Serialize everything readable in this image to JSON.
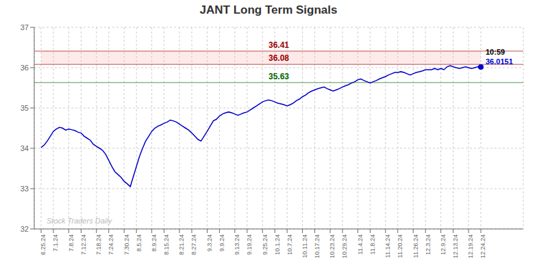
{
  "chart_data": {
    "type": "line",
    "title": "JANT Long Term Signals",
    "categories": [
      "6.25.24",
      null,
      null,
      null,
      "7.1.24",
      null,
      null,
      null,
      null,
      "7.8.24",
      null,
      null,
      null,
      "7.12.24",
      null,
      null,
      null,
      null,
      "7.18.24",
      null,
      null,
      null,
      "7.24.24",
      null,
      null,
      null,
      null,
      "7.30.24",
      null,
      null,
      null,
      "8.5.24",
      null,
      null,
      null,
      null,
      "8.9.24",
      null,
      null,
      null,
      "8.15.24",
      null,
      null,
      null,
      null,
      "8.21.24",
      null,
      null,
      null,
      "8.27.24",
      null,
      null,
      null,
      null,
      "9.3.24",
      null,
      null,
      null,
      "9.9.24",
      null,
      null,
      null,
      null,
      "9.13.24",
      null,
      null,
      null,
      "9.19.24",
      null,
      null,
      null,
      null,
      "9.25.24",
      null,
      null,
      null,
      "10.1.24",
      null,
      null,
      null,
      "10.7.24",
      null,
      null,
      null,
      null,
      "10.11.24",
      null,
      null,
      null,
      "10.17.24",
      null,
      null,
      null,
      null,
      "10.23.24",
      null,
      null,
      null,
      "10.29.24",
      null,
      null,
      null,
      null,
      "11.4.24",
      null,
      null,
      null,
      "11.8.24",
      null,
      null,
      null,
      null,
      "11.14.24",
      null,
      null,
      null,
      "11.20.24",
      null,
      null,
      null,
      null,
      "11.26.24",
      null,
      null,
      null,
      "12.3.24",
      null,
      null,
      null,
      null,
      "12.9.24",
      null,
      null,
      null,
      "12.13.24",
      null,
      null,
      null,
      null,
      "12.19.24",
      null,
      null,
      null,
      "12.24.24"
    ],
    "values": [
      34.02,
      34.08,
      34.18,
      34.3,
      34.42,
      34.48,
      34.52,
      34.5,
      34.45,
      34.48,
      34.46,
      34.44,
      34.4,
      34.38,
      34.3,
      34.25,
      34.2,
      34.1,
      34.05,
      34.0,
      33.95,
      33.85,
      33.7,
      33.55,
      33.42,
      33.35,
      33.28,
      33.18,
      33.12,
      33.05,
      33.3,
      33.55,
      33.8,
      34.0,
      34.18,
      34.3,
      34.42,
      34.5,
      34.55,
      34.58,
      34.62,
      34.65,
      34.7,
      34.68,
      34.65,
      34.6,
      34.55,
      34.5,
      34.45,
      34.38,
      34.3,
      34.22,
      34.18,
      34.3,
      34.42,
      34.55,
      34.68,
      34.72,
      34.8,
      34.85,
      34.88,
      34.9,
      34.88,
      34.85,
      34.82,
      34.85,
      34.88,
      34.9,
      34.95,
      35.0,
      35.05,
      35.1,
      35.15,
      35.18,
      35.2,
      35.18,
      35.15,
      35.12,
      35.1,
      35.08,
      35.05,
      35.08,
      35.12,
      35.18,
      35.22,
      35.28,
      35.32,
      35.38,
      35.42,
      35.45,
      35.48,
      35.5,
      35.52,
      35.48,
      35.45,
      35.42,
      35.45,
      35.48,
      35.52,
      35.55,
      35.58,
      35.62,
      35.65,
      35.7,
      35.72,
      35.68,
      35.65,
      35.62,
      35.65,
      35.68,
      35.72,
      35.75,
      35.78,
      35.82,
      35.85,
      35.88,
      35.88,
      35.9,
      35.88,
      35.85,
      35.82,
      35.85,
      35.88,
      35.9,
      35.92,
      35.95,
      35.95,
      35.95,
      35.98,
      35.95,
      35.98,
      35.95,
      36.02,
      36.05,
      36.02,
      36.0,
      35.98,
      36.0,
      36.02,
      36.0,
      35.98,
      36.0,
      36.02,
      36.0151
    ],
    "color": "#0000cc",
    "ylim": [
      32,
      37
    ],
    "yticks": [
      32,
      33,
      34,
      35,
      36,
      37
    ],
    "grid": true,
    "hlines": [
      {
        "value": 36.41,
        "label": "36.41",
        "color": "#990000"
      },
      {
        "value": 36.08,
        "label": "36.08",
        "color": "#990000"
      },
      {
        "value": 35.63,
        "label": "35.63",
        "color": "#006600"
      }
    ],
    "band": {
      "from": 36.08,
      "to": 36.41,
      "color": "#ffaaaa"
    },
    "annotations": [
      {
        "text": "10:59",
        "color": "#000000"
      },
      {
        "text": "36.0151",
        "color": "#0000cc"
      }
    ],
    "watermark": {
      "text": "Stock Traders Daily",
      "color": "#bbbbbb"
    }
  }
}
